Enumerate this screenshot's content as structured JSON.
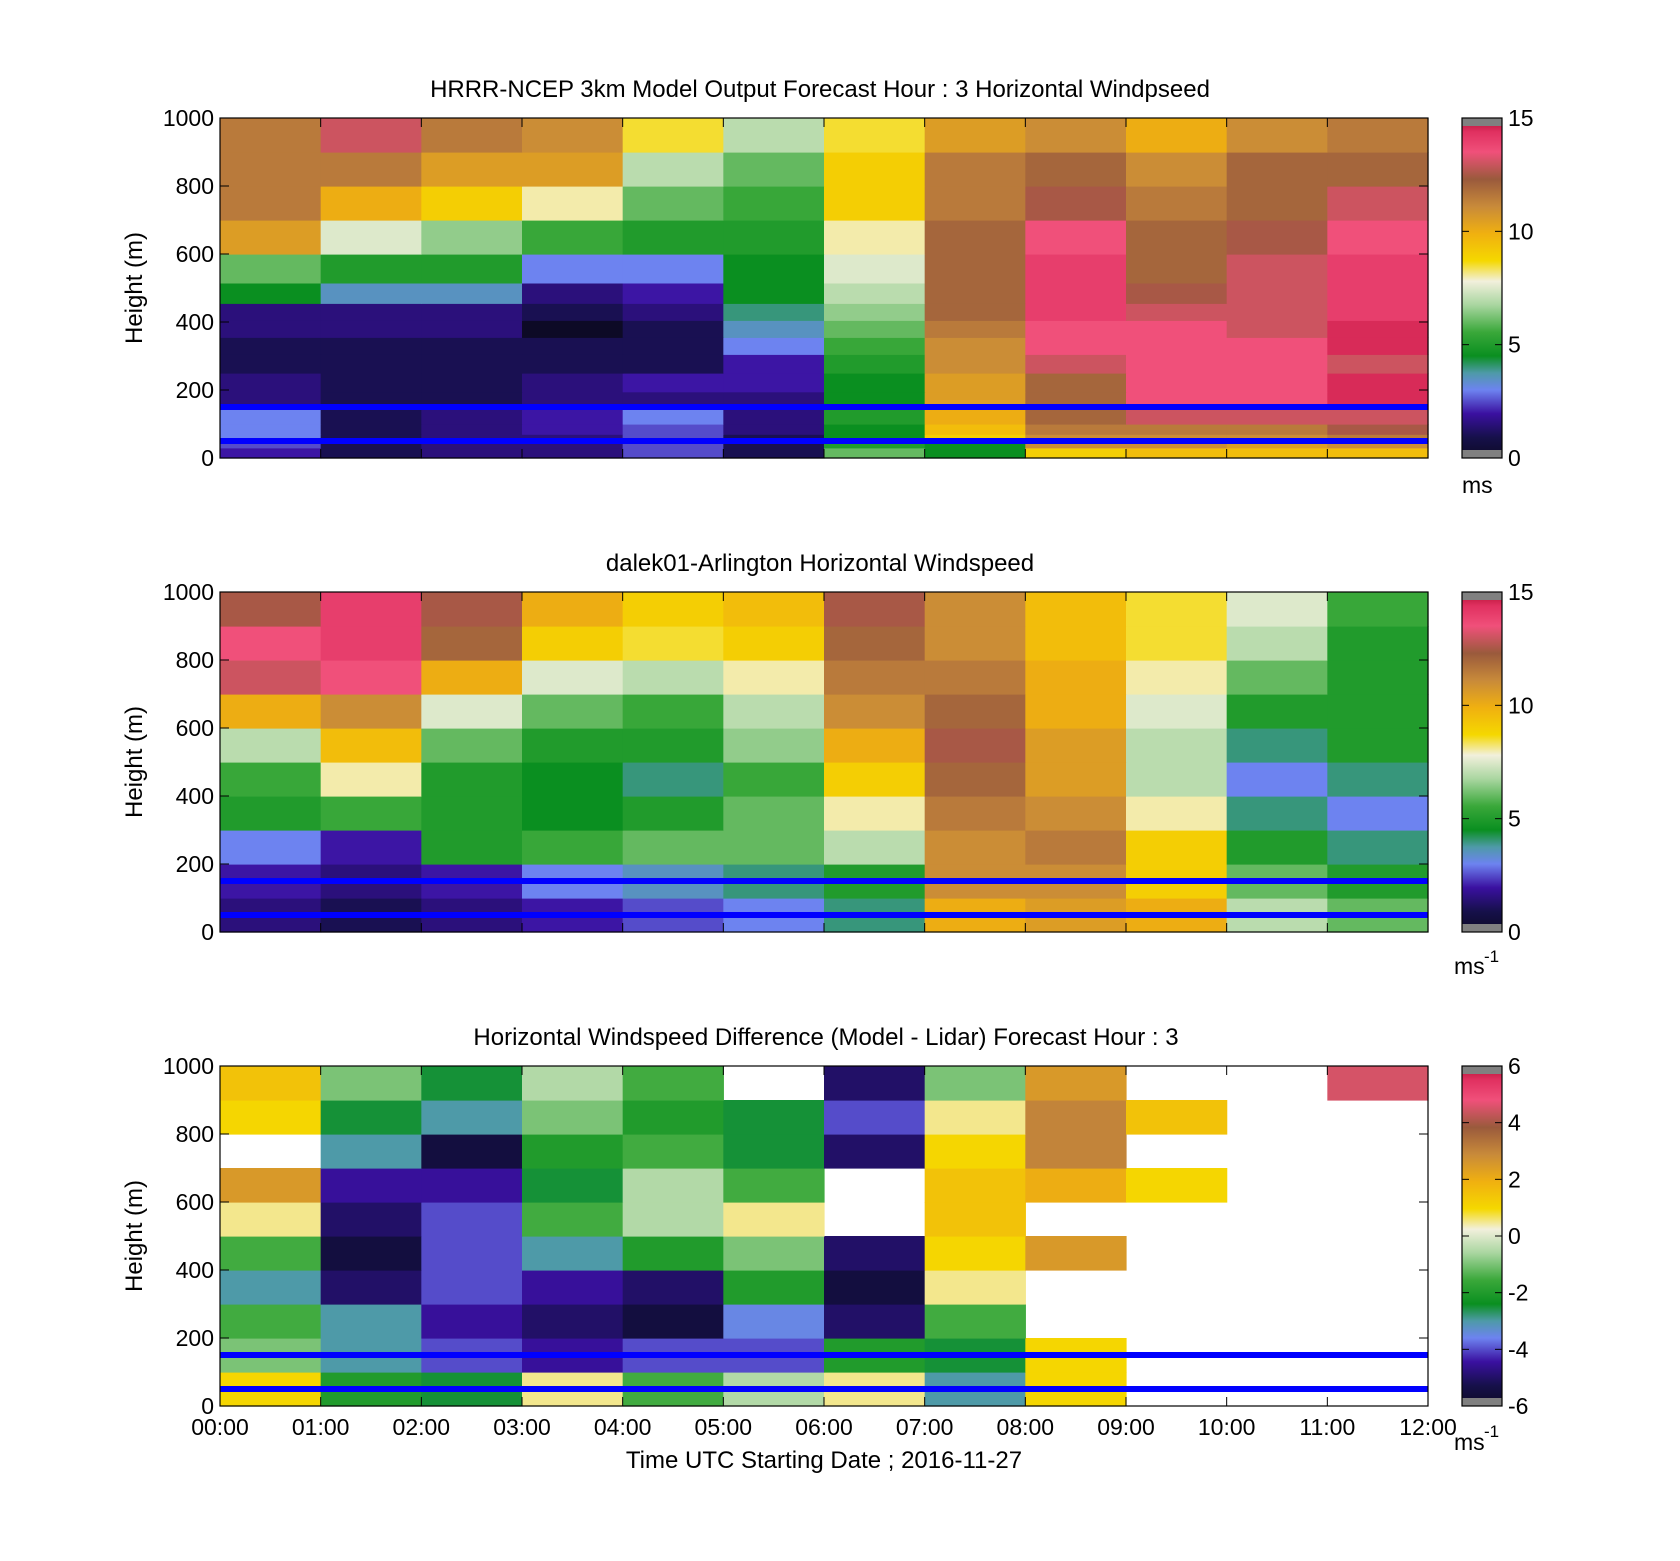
{
  "colors": {
    "ground_lines": "#0000ff",
    "frame": "#000000",
    "missing_bin": "#808080"
  },
  "shared": {
    "x_ticks": [
      "00:00",
      "01:00",
      "02:00",
      "03:00",
      "04:00",
      "05:00",
      "06:00",
      "07:00",
      "08:00",
      "09:00",
      "10:00",
      "11:00",
      "12:00"
    ],
    "y_ticks": [
      "0",
      "200",
      "400",
      "600",
      "800",
      "1000"
    ],
    "y_label": "Height (m)",
    "x_label": "Time UTC  Starting Date ; 2016-11-27"
  },
  "chart_data": [
    {
      "type": "heatmap",
      "title": "HRRR-NCEP 3km Model Output   Forecast Hour : 3 Horizontal Windpseed",
      "ylabel": "Height (m)",
      "xlabel": "",
      "xlim_hours": [
        0,
        12
      ],
      "ylim": [
        0,
        1000
      ],
      "z_range": [
        0,
        15
      ],
      "colorbar_ticks": [
        "0",
        "5",
        "10",
        "15"
      ],
      "colorbar_label": "ms",
      "colorbar_exponent": "",
      "reference_lines_m": [
        50,
        150
      ],
      "x_hours": [
        0.5,
        1.5,
        2.5,
        3.5,
        4.5,
        5.5,
        6.5,
        7.5,
        8.5,
        9.5,
        10.5,
        11.5
      ],
      "heights_m": [
        20,
        40,
        60,
        80,
        120,
        170,
        220,
        280,
        330,
        380,
        430,
        480,
        550,
        650,
        750,
        850,
        950
      ],
      "z": [
        [
          2,
          1,
          1.5,
          1.5,
          2.5,
          1,
          6,
          4.5,
          9,
          9.5,
          9.5,
          9.5
        ],
        [
          2.5,
          1,
          1.5,
          1.5,
          2.5,
          1,
          5,
          4.5,
          11,
          11,
          10.5,
          11
        ],
        [
          3,
          1,
          1.5,
          1.5,
          2.5,
          1,
          4.5,
          9,
          11,
          11,
          11,
          11.5
        ],
        [
          3,
          1,
          1.5,
          2,
          2.5,
          1.5,
          4.5,
          9.5,
          11.5,
          11.5,
          11.5,
          12.5
        ],
        [
          3,
          1,
          1.5,
          2,
          3,
          1.5,
          5,
          10,
          12,
          13,
          13,
          13
        ],
        [
          1.5,
          1,
          1,
          1.5,
          1.5,
          1.5,
          4.5,
          10.5,
          12,
          13.5,
          13.5,
          14.5
        ],
        [
          1.5,
          1,
          1,
          1.5,
          2,
          2,
          4.5,
          10.5,
          12,
          13.5,
          13.5,
          14.5
        ],
        [
          1,
          1,
          1,
          1,
          1,
          2,
          5,
          11,
          13,
          13.5,
          13.5,
          13
        ],
        [
          1,
          1,
          1,
          1,
          1,
          3,
          5.5,
          11,
          13.5,
          13.5,
          13.5,
          14.5
        ],
        [
          1.5,
          1.5,
          1.5,
          0,
          1,
          3.5,
          6,
          11.5,
          13.5,
          13.5,
          13,
          14.5
        ],
        [
          1.5,
          1.5,
          1.5,
          1,
          1.5,
          4,
          6.5,
          12,
          14,
          13,
          13,
          14
        ],
        [
          4.5,
          3.5,
          3.5,
          1.5,
          2,
          4.5,
          7,
          12,
          14,
          12.5,
          13,
          14
        ],
        [
          6,
          5,
          5,
          3,
          3,
          4.5,
          7.5,
          12,
          14,
          12,
          13,
          14
        ],
        [
          10.5,
          7.5,
          6.5,
          5.5,
          5,
          5,
          8,
          12,
          13.5,
          12,
          12.5,
          13.5
        ],
        [
          11.5,
          10,
          9,
          8,
          6,
          5.5,
          9,
          11.5,
          12.5,
          11.5,
          12,
          13
        ],
        [
          11.5,
          11.5,
          10.5,
          10.5,
          7,
          6,
          9,
          11.5,
          12,
          11,
          12,
          12
        ],
        [
          11.5,
          13,
          11.5,
          11,
          8.5,
          7,
          8.5,
          10.5,
          11,
          10,
          11,
          11.5
        ]
      ]
    },
    {
      "type": "heatmap",
      "title": "dalek01-Arlington  Horizontal Windspeed",
      "ylabel": "Height (m)",
      "xlabel": "",
      "xlim_hours": [
        0,
        12
      ],
      "ylim": [
        0,
        1000
      ],
      "z_range": [
        0,
        15
      ],
      "colorbar_ticks": [
        "0",
        "5",
        "10",
        "15"
      ],
      "colorbar_label": "ms",
      "colorbar_exponent": "-1",
      "reference_lines_m": [
        50,
        150
      ],
      "x_hours": [
        0.5,
        1.5,
        2.5,
        3.5,
        4.5,
        5.5,
        6.5,
        7.5,
        8.5,
        9.5,
        10.5,
        11.5
      ],
      "heights_m": [
        50,
        150,
        250,
        350,
        450,
        550,
        650,
        750,
        850,
        950
      ],
      "z": [
        [
          1.5,
          1,
          1.5,
          2,
          2.5,
          3,
          4,
          10,
          10.5,
          10,
          7,
          6
        ],
        [
          2,
          1.5,
          2,
          3,
          3.5,
          4,
          5,
          11,
          11,
          9,
          6,
          5
        ],
        [
          3,
          2,
          5,
          5.5,
          6,
          6,
          7,
          11,
          11.5,
          9,
          5,
          4
        ],
        [
          5,
          5.5,
          5,
          4.5,
          5,
          6,
          8,
          11.5,
          11,
          8,
          4,
          3
        ],
        [
          5.5,
          8,
          5,
          4.5,
          4,
          5.5,
          9,
          12,
          10.5,
          7,
          3,
          4
        ],
        [
          7,
          9.5,
          6,
          5,
          5,
          6.5,
          10,
          12.5,
          10.5,
          7,
          4,
          5
        ],
        [
          10,
          11,
          7.5,
          6,
          5.5,
          7,
          11,
          12,
          10,
          7.5,
          5,
          5
        ],
        [
          13,
          13.5,
          10,
          7.5,
          7,
          8,
          11.5,
          11.5,
          10,
          8,
          6,
          5
        ],
        [
          13.5,
          14,
          12,
          9,
          8.5,
          9,
          12,
          11,
          9.5,
          8.5,
          7,
          5
        ],
        [
          12.5,
          14,
          12.5,
          10,
          9,
          9.5,
          12.5,
          11,
          9.5,
          8.5,
          7.5,
          5.5
        ]
      ]
    },
    {
      "type": "heatmap",
      "title": "Horizontal Windspeed Difference (Model - Lidar) Forecast Hour : 3",
      "ylabel": "Height (m)",
      "xlabel": "Time UTC  Starting Date ; 2016-11-27",
      "xlim_hours": [
        0,
        12
      ],
      "ylim": [
        0,
        1000
      ],
      "z_range": [
        -6,
        6
      ],
      "colorbar_ticks": [
        "-6",
        "-4",
        "-2",
        "0",
        "2",
        "4",
        "6"
      ],
      "colorbar_label": "ms",
      "colorbar_exponent": "-1",
      "reference_lines_m": [
        50,
        150
      ],
      "x_hours": [
        0.5,
        1.5,
        2.5,
        3.5,
        4.5,
        5.5,
        6.5,
        7.5,
        8.5,
        9.5,
        10.5,
        11.5
      ],
      "heights_m": [
        50,
        150,
        250,
        350,
        450,
        550,
        650,
        750,
        850,
        950
      ],
      "z": [
        [
          1,
          -2,
          -2.5,
          0.5,
          -1.5,
          -0.5,
          0.5,
          -3,
          1,
          null,
          null,
          null
        ],
        [
          -1,
          -3,
          -4,
          -4.5,
          -4,
          -4,
          -2,
          -2.5,
          1,
          null,
          null,
          null
        ],
        [
          -1.5,
          -3,
          -4.5,
          -5,
          -5.5,
          -3.5,
          -5,
          -1.5,
          null,
          null,
          null,
          null
        ],
        [
          -3,
          -5,
          -4,
          -4.5,
          -5,
          -2,
          -5.5,
          0.5,
          null,
          null,
          null,
          null
        ],
        [
          -1.5,
          -5.5,
          -4,
          -3,
          -2,
          -1,
          -5,
          1,
          2.5,
          null,
          null,
          null
        ],
        [
          0.5,
          -5,
          -4,
          -1.5,
          -0.5,
          0.5,
          null,
          1.5,
          null,
          null,
          null,
          null
        ],
        [
          2.5,
          -4.5,
          -4.5,
          -2.5,
          -0.5,
          -1.5,
          null,
          1.5,
          2,
          1,
          null,
          null
        ],
        [
          null,
          -3,
          -5.5,
          -2,
          -1.5,
          -2.5,
          -5,
          1,
          3,
          null,
          null,
          null
        ],
        [
          1,
          -2.5,
          -3,
          -1,
          -2,
          -2.5,
          -4,
          0.5,
          3,
          1.5,
          null,
          null
        ],
        [
          1.5,
          -1,
          -2.5,
          -0.5,
          -1.5,
          null,
          -5,
          -1,
          2.5,
          null,
          null,
          4.5
        ]
      ]
    }
  ]
}
